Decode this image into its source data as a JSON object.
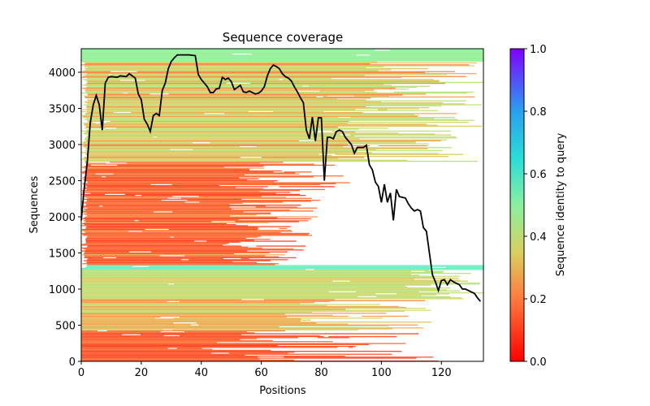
{
  "chart_data": {
    "type": "line",
    "title": "Sequence coverage",
    "xlabel": "Positions",
    "ylabel": "Sequences",
    "x": [
      0,
      1,
      2,
      3,
      4,
      5,
      6,
      7,
      8,
      9,
      10,
      12,
      13,
      15,
      16,
      18,
      19,
      20,
      21,
      22,
      23,
      24,
      25,
      26,
      27,
      28,
      29,
      30,
      31,
      32,
      34,
      36,
      38,
      39,
      40,
      41,
      42,
      43,
      44,
      45,
      46,
      47,
      48,
      49,
      50,
      51,
      52,
      53,
      54,
      55,
      56,
      57,
      58,
      59,
      60,
      61,
      62,
      63,
      64,
      65,
      66,
      67,
      68,
      69,
      70,
      71,
      72,
      73,
      74,
      75,
      76,
      77,
      78,
      79,
      80,
      81,
      82,
      83,
      84,
      85,
      86,
      87,
      88,
      89,
      90,
      91,
      92,
      93,
      94,
      95,
      96,
      97,
      98,
      99,
      100,
      101,
      102,
      103,
      104,
      105,
      106,
      107,
      108,
      109,
      110,
      111,
      112,
      113,
      114,
      115,
      116,
      117,
      118,
      119,
      120,
      121,
      122,
      123,
      124,
      125,
      126,
      127,
      128,
      129,
      130,
      131,
      132,
      133
    ],
    "values": [
      1950,
      2400,
      2750,
      3300,
      3550,
      3680,
      3550,
      3200,
      3850,
      3930,
      3940,
      3930,
      3950,
      3940,
      3980,
      3920,
      3700,
      3620,
      3350,
      3280,
      3180,
      3400,
      3430,
      3400,
      3750,
      3850,
      4050,
      4150,
      4200,
      4240,
      4240,
      4240,
      4230,
      3970,
      3900,
      3850,
      3800,
      3720,
      3720,
      3770,
      3780,
      3930,
      3900,
      3920,
      3870,
      3760,
      3790,
      3820,
      3730,
      3720,
      3740,
      3720,
      3700,
      3710,
      3740,
      3800,
      3950,
      4050,
      4100,
      4080,
      4050,
      3980,
      3940,
      3920,
      3880,
      3800,
      3730,
      3650,
      3580,
      3200,
      3080,
      3380,
      3050,
      3370,
      3370,
      2500,
      3100,
      3100,
      3080,
      3180,
      3200,
      3180,
      3100,
      3050,
      3000,
      2880,
      2960,
      2960,
      2960,
      2990,
      2720,
      2650,
      2480,
      2420,
      2200,
      2450,
      2200,
      2330,
      1950,
      2380,
      2280,
      2270,
      2260,
      2180,
      2120,
      2080,
      2100,
      2080,
      1850,
      1800,
      1500,
      1200,
      1100,
      980,
      1120,
      1130,
      1060,
      1130,
      1100,
      1080,
      1060,
      1000,
      1000,
      980,
      960,
      940,
      880,
      830
    ],
    "color": "#000000",
    "xlim": [
      0,
      134
    ],
    "ylim": [
      0,
      4326
    ],
    "xticks": [
      0,
      20,
      40,
      60,
      80,
      100,
      120
    ],
    "yticks": [
      0,
      500,
      1000,
      1500,
      2000,
      2500,
      3000,
      3500,
      4000
    ],
    "colorbar": {
      "label": "Sequence identity to query",
      "lim": [
        0,
        1
      ],
      "ticks": [
        {
          "value": 0,
          "label": "0.0"
        },
        {
          "value": 0.2,
          "label": "0.2"
        },
        {
          "value": 0.4,
          "label": "0.4"
        },
        {
          "value": 0.6,
          "label": "0.6"
        },
        {
          "value": 0.8,
          "label": "0.8"
        },
        {
          "value": 1,
          "label": "1.0"
        }
      ]
    }
  }
}
